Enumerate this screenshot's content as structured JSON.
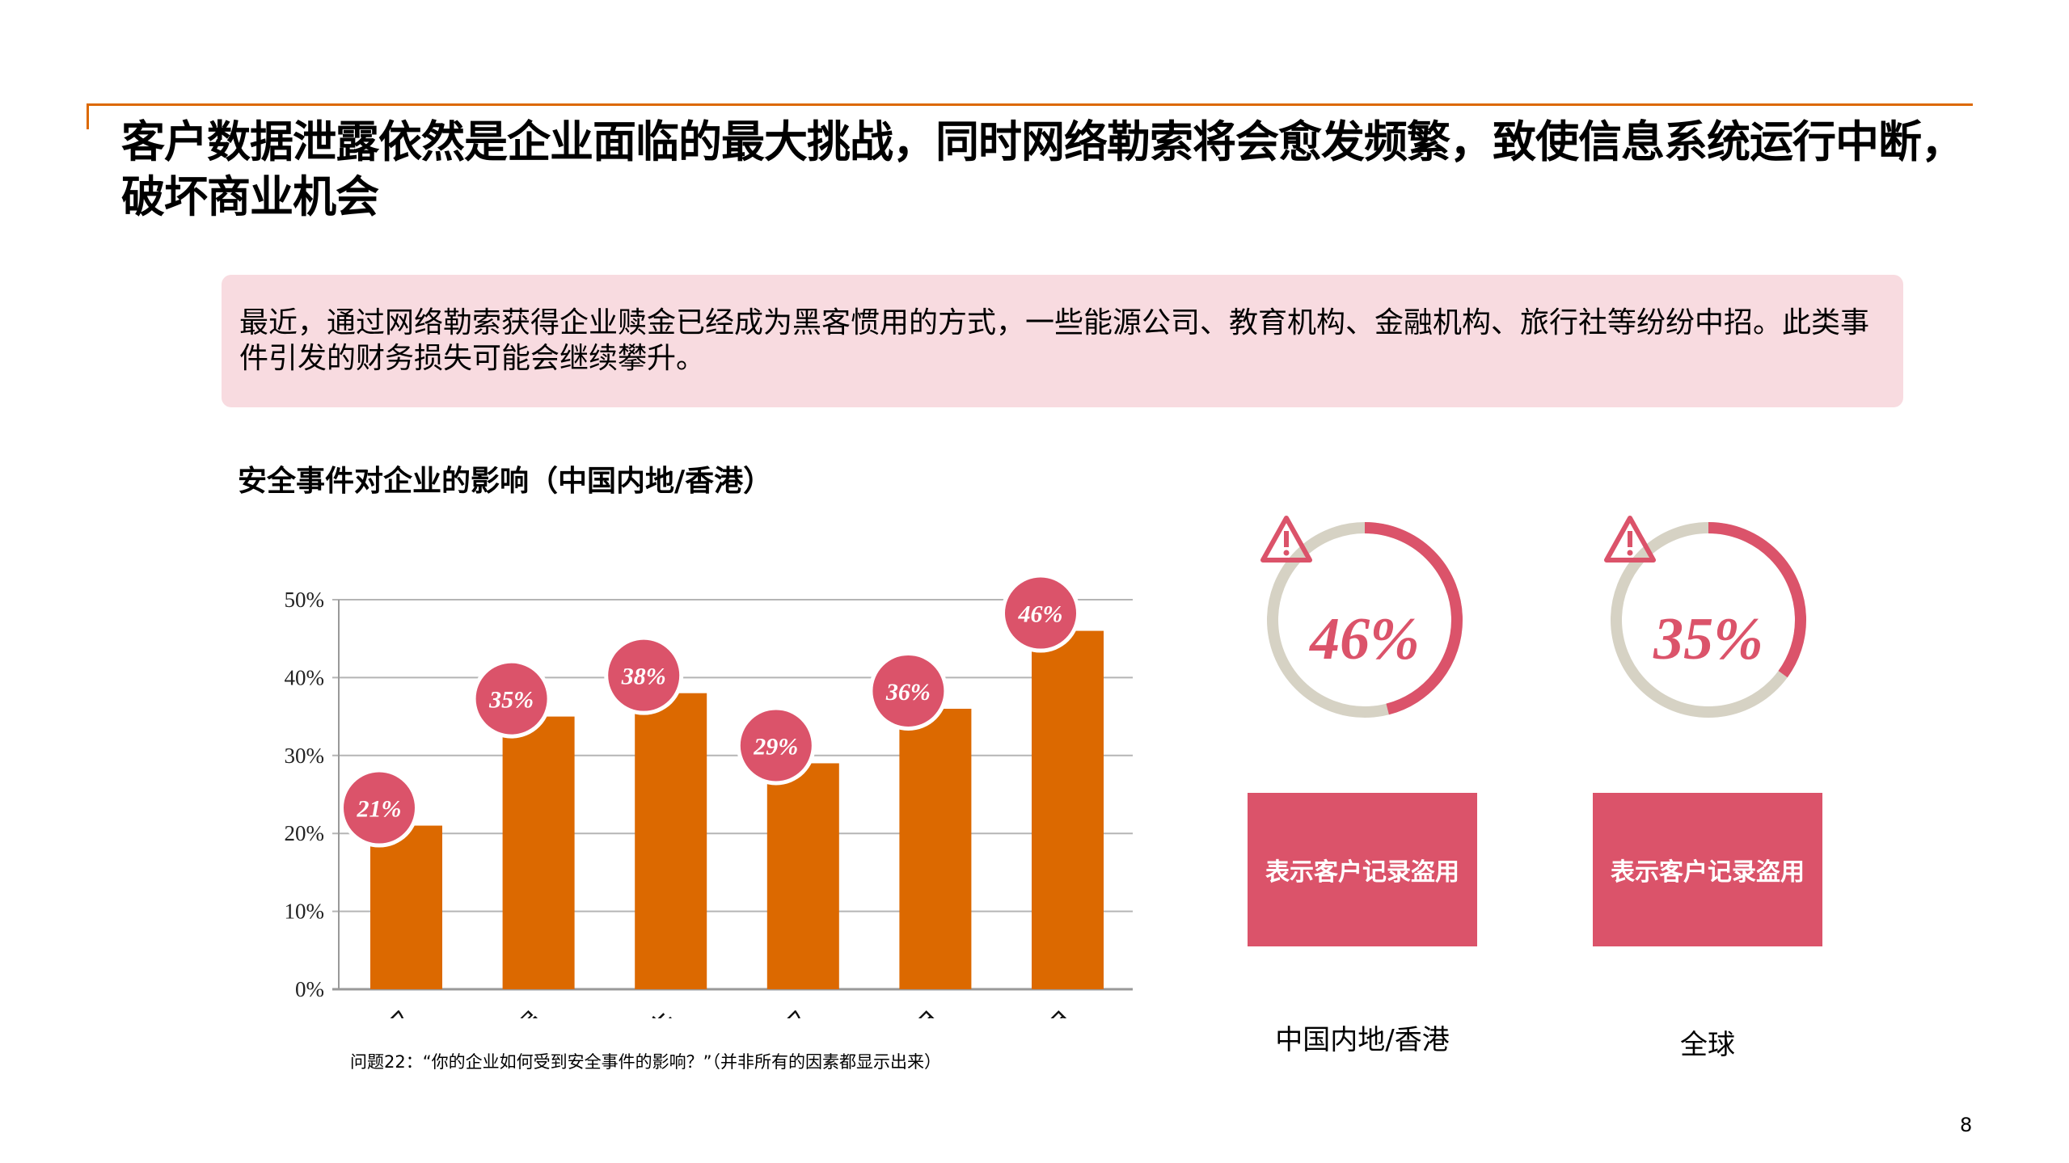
{
  "title": "客户数据泄露依然是企业面临的最大挑战，同时网络勒索将会愈发频繁，致使信息系统运行中断，破坏商业机会",
  "intro": "最近，通过网络勒索获得企业赎金已经成为黑客惯用的方式，一些能源公司、教育机构、金融机构、旅行社等纷纷中招。此类事件引发的财务损失可能会继续攀升。",
  "colors": {
    "accent": "#dc6900",
    "bar": "#dc6900",
    "bubble": "#db536a",
    "ring_track": "#d6d2c4",
    "intro_bg": "#f8dbe0"
  },
  "chart_data": [
    {
      "type": "bar",
      "title": "安全事件对企业的影响（中国内地/香港）",
      "categories": [
        "盗窃“硬”知识产权",
        "品牌/声誉受损",
        "财务损失",
        "盗窃“软”知识产权",
        "商业邮件盗用",
        "客户记录盗用"
      ],
      "values": [
        21,
        35,
        38,
        29,
        36,
        46
      ],
      "data_labels": [
        "21%",
        "35%",
        "38%",
        "29%",
        "36%",
        "46%"
      ],
      "yticks": [
        "0%",
        "10%",
        "20%",
        "30%",
        "40%",
        "50%"
      ],
      "ylim": [
        0,
        50
      ],
      "grid": true
    },
    {
      "type": "pie",
      "subtype": "donut",
      "items": [
        {
          "value": 46,
          "label": "46%",
          "box_text": "表示客户记录盗用",
          "region": "中国内地/香港",
          "icon": "warning-icon"
        },
        {
          "value": 35,
          "label": "35%",
          "box_text": "表示客户记录盗用",
          "region": "全球",
          "icon": "warning-icon"
        }
      ]
    }
  ],
  "footnote": "问题22：“你的企业如何受到安全事件的影响？”（并非所有的因素都显示出来）",
  "page_number": "8"
}
